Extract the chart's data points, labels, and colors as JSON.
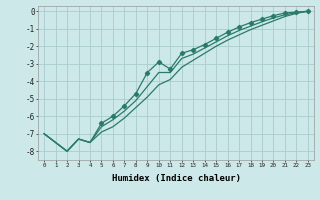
{
  "xlabel": "Humidex (Indice chaleur)",
  "bg_color": "#cce8e8",
  "grid_color": "#aacccc",
  "line_color": "#2a7a6a",
  "x": [
    0,
    1,
    2,
    3,
    4,
    5,
    6,
    7,
    8,
    9,
    10,
    11,
    12,
    13,
    14,
    15,
    16,
    17,
    18,
    19,
    20,
    21,
    22,
    23
  ],
  "line_upper": [
    -7.0,
    -7.5,
    -8.0,
    -7.3,
    -7.5,
    -6.4,
    -6.0,
    -5.4,
    -4.7,
    -3.5,
    -2.9,
    -3.3,
    -2.4,
    -2.2,
    -1.9,
    -1.55,
    -1.2,
    -0.9,
    -0.65,
    -0.45,
    -0.25,
    -0.1,
    -0.05,
    0.0
  ],
  "line_mid": [
    -7.0,
    -7.5,
    -8.0,
    -7.3,
    -7.5,
    -6.6,
    -6.2,
    -5.7,
    -5.1,
    -4.3,
    -3.5,
    -3.5,
    -2.7,
    -2.45,
    -2.1,
    -1.75,
    -1.4,
    -1.1,
    -0.85,
    -0.6,
    -0.38,
    -0.2,
    -0.08,
    0.0
  ],
  "line_lower": [
    -7.0,
    -7.5,
    -8.0,
    -7.3,
    -7.5,
    -6.9,
    -6.6,
    -6.1,
    -5.5,
    -4.9,
    -4.2,
    -3.9,
    -3.2,
    -2.8,
    -2.4,
    -2.0,
    -1.65,
    -1.35,
    -1.05,
    -0.8,
    -0.55,
    -0.3,
    -0.12,
    0.0
  ],
  "ylim": [
    -8.5,
    0.3
  ],
  "xlim": [
    -0.5,
    23.5
  ],
  "yticks": [
    0,
    -1,
    -2,
    -3,
    -4,
    -5,
    -6,
    -7,
    -8
  ],
  "xticks": [
    0,
    1,
    2,
    3,
    4,
    5,
    6,
    7,
    8,
    9,
    10,
    11,
    12,
    13,
    14,
    15,
    16,
    17,
    18,
    19,
    20,
    21,
    22,
    23
  ]
}
